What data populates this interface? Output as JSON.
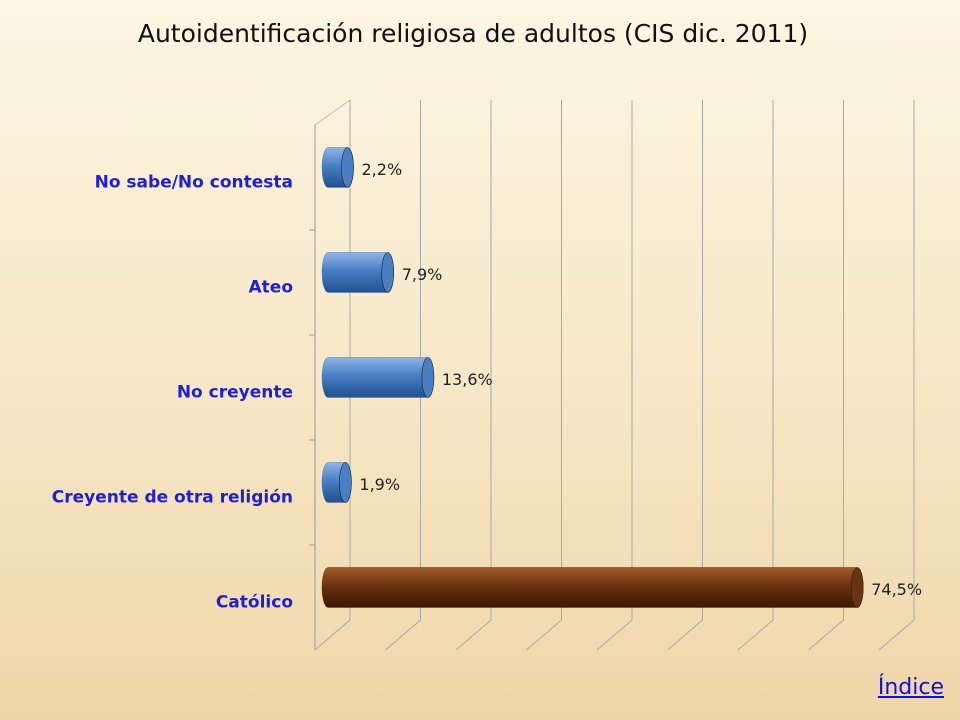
{
  "chart_data": {
    "type": "bar",
    "orientation": "horizontal",
    "title": "Autoidentificación religiosa de adultos (CIS dic. 2011)",
    "categories": [
      "No sabe/No contesta",
      "Ateo",
      "No creyente",
      "Creyente de otra religión",
      "Católico"
    ],
    "values": [
      2.2,
      7.9,
      13.6,
      1.9,
      74.5
    ],
    "value_labels": [
      "2,2%",
      "7,9%",
      "13,6%",
      "1,9%",
      "74,5%"
    ],
    "colors": [
      "#4a7fc4",
      "#4a7fc4",
      "#4a7fc4",
      "#4a7fc4",
      "#6b3210"
    ],
    "xlim": [
      0,
      80
    ],
    "xticks": [
      0,
      10,
      20,
      30,
      40,
      50,
      60,
      70,
      80
    ],
    "grid": true
  },
  "footer_link": "Índice"
}
